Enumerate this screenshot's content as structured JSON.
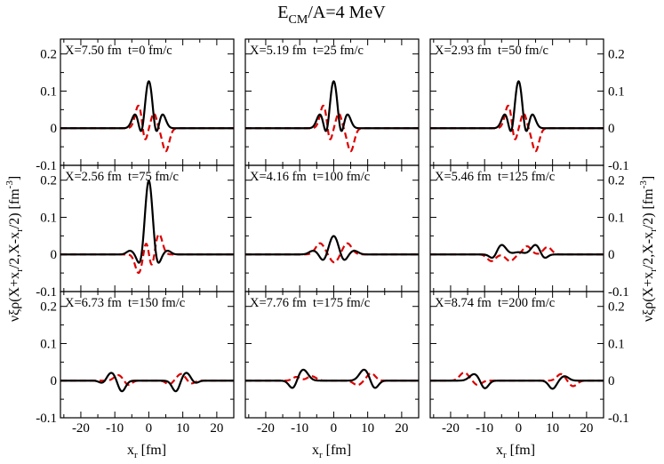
{
  "title_main": "E",
  "title_sub": "CM",
  "title_rest": "/A=4 MeV",
  "ylabel_text": "νξρ(X+x",
  "ylabel_sub1": "r",
  "ylabel_mid": "/2,X-x",
  "ylabel_sub2": "r",
  "ylabel_end": "/2) [fm",
  "ylabel_sup": "-3",
  "ylabel_close": "]",
  "xlabel_main": "x",
  "xlabel_sub": "r",
  "xlabel_unit": " [fm]",
  "colors": {
    "solid": "#000000",
    "dashed": "#dd0000"
  },
  "chart_data": {
    "type": "line",
    "layout": "3x3 grid",
    "xlim": [
      -26,
      25
    ],
    "ylim": [
      -0.1,
      0.24
    ],
    "xticks": [
      -20,
      -10,
      0,
      10,
      20
    ],
    "xtick_labels": [
      "-20",
      "-10",
      "0",
      "10",
      "20"
    ],
    "yticks": [
      -0.1,
      0,
      0.1,
      0.2
    ],
    "ytick_labels": [
      "-0.1",
      "0",
      "0.1",
      "0.2"
    ],
    "series_names": [
      "solid (black)",
      "dashed (red)"
    ],
    "panels": [
      {
        "label": "X=7.50 fm  t=0 fm/c",
        "solid": [
          {
            "c": 0,
            "a": 0.13,
            "w": 1.2
          },
          {
            "c": -4,
            "a": 0.038,
            "w": 1.0
          },
          {
            "c": 4,
            "a": 0.038,
            "w": 1.0
          },
          {
            "c": -2,
            "a": -0.04,
            "w": 0.8
          },
          {
            "c": 2,
            "a": -0.04,
            "w": 0.8
          }
        ],
        "dashed": [
          {
            "c": -3,
            "a": 0.062,
            "w": 1.0
          },
          {
            "c": 5,
            "a": -0.062,
            "w": 1.0
          },
          {
            "c": -1.2,
            "a": -0.04,
            "w": 0.7
          },
          {
            "c": 1.5,
            "a": 0.04,
            "w": 0.8
          }
        ]
      },
      {
        "label": "X=5.19 fm  t=25 fm/c",
        "solid": [
          {
            "c": 0,
            "a": 0.13,
            "w": 1.2
          },
          {
            "c": -4,
            "a": 0.038,
            "w": 1.0
          },
          {
            "c": 4,
            "a": 0.038,
            "w": 1.0
          },
          {
            "c": -2,
            "a": -0.04,
            "w": 0.8
          },
          {
            "c": 2,
            "a": -0.04,
            "w": 0.8
          }
        ],
        "dashed": [
          {
            "c": -3,
            "a": 0.062,
            "w": 1.0
          },
          {
            "c": 5,
            "a": -0.062,
            "w": 1.0
          },
          {
            "c": -1.2,
            "a": -0.04,
            "w": 0.7
          },
          {
            "c": 1.5,
            "a": 0.04,
            "w": 0.8
          }
        ]
      },
      {
        "label": "X=2.93 fm  t=50 fm/c",
        "solid": [
          {
            "c": 0,
            "a": 0.13,
            "w": 1.2
          },
          {
            "c": -4,
            "a": 0.038,
            "w": 1.0
          },
          {
            "c": 4,
            "a": 0.038,
            "w": 1.0
          },
          {
            "c": -2,
            "a": -0.04,
            "w": 0.8
          },
          {
            "c": 2,
            "a": -0.04,
            "w": 0.8
          }
        ],
        "dashed": [
          {
            "c": -3,
            "a": 0.062,
            "w": 1.0
          },
          {
            "c": 5,
            "a": -0.062,
            "w": 1.0
          },
          {
            "c": -1.2,
            "a": -0.04,
            "w": 0.7
          },
          {
            "c": 1.5,
            "a": 0.04,
            "w": 0.8
          }
        ]
      },
      {
        "label": "X=2.56 fm  t=75 fm/c",
        "solid": [
          {
            "c": 0,
            "a": 0.2,
            "w": 1.1
          },
          {
            "c": -2.5,
            "a": -0.032,
            "w": 0.9
          },
          {
            "c": 2.5,
            "a": -0.032,
            "w": 0.9
          },
          {
            "c": -5.5,
            "a": 0.01,
            "w": 1.0
          },
          {
            "c": 5.5,
            "a": 0.01,
            "w": 1.0
          }
        ],
        "dashed": [
          {
            "c": -3,
            "a": -0.05,
            "w": 1.0
          },
          {
            "c": 3,
            "a": 0.055,
            "w": 1.0
          },
          {
            "c": -0.8,
            "a": 0.035,
            "w": 0.7
          },
          {
            "c": 0.9,
            "a": -0.035,
            "w": 0.7
          }
        ]
      },
      {
        "label": "X=4.16 fm  t=100 fm/c",
        "solid": [
          {
            "c": 0,
            "a": 0.05,
            "w": 1.3
          },
          {
            "c": -3,
            "a": -0.018,
            "w": 1.0
          },
          {
            "c": 3,
            "a": -0.018,
            "w": 1.0
          },
          {
            "c": -6,
            "a": 0.01,
            "w": 1.2
          },
          {
            "c": 6,
            "a": 0.01,
            "w": 1.2
          }
        ],
        "dashed": [
          {
            "c": -4,
            "a": 0.03,
            "w": 1.3
          },
          {
            "c": 0.2,
            "a": -0.022,
            "w": 1.2
          },
          {
            "c": 4,
            "a": 0.03,
            "w": 1.3
          }
        ]
      },
      {
        "label": "X=5.46 fm  t=125 fm/c",
        "solid": [
          {
            "c": -5,
            "a": 0.026,
            "w": 1.3
          },
          {
            "c": 5,
            "a": 0.026,
            "w": 1.3
          },
          {
            "c": -7.5,
            "a": -0.012,
            "w": 1.0
          },
          {
            "c": 7.5,
            "a": -0.012,
            "w": 1.0
          },
          {
            "c": 0,
            "a": 0.006,
            "w": 1.5
          }
        ],
        "dashed": [
          {
            "c": -8,
            "a": -0.018,
            "w": 1.2
          },
          {
            "c": -2.5,
            "a": -0.018,
            "w": 1.2
          },
          {
            "c": 2.5,
            "a": 0.022,
            "w": 1.2
          },
          {
            "c": 8.5,
            "a": 0.02,
            "w": 1.2
          }
        ]
      },
      {
        "label": "X=6.73 fm  t=150 fm/c",
        "solid": [
          {
            "c": -11,
            "a": 0.022,
            "w": 1.3
          },
          {
            "c": -8,
            "a": -0.03,
            "w": 1.1
          },
          {
            "c": -13.5,
            "a": -0.008,
            "w": 1.0
          },
          {
            "c": 8,
            "a": -0.03,
            "w": 1.1
          },
          {
            "c": 11,
            "a": 0.022,
            "w": 1.3
          },
          {
            "c": 13.5,
            "a": -0.008,
            "w": 1.0
          }
        ],
        "dashed": [
          {
            "c": -9,
            "a": 0.015,
            "w": 1.2
          },
          {
            "c": -6,
            "a": -0.012,
            "w": 1.0
          },
          {
            "c": 6,
            "a": -0.01,
            "w": 1.0
          },
          {
            "c": 9.5,
            "a": 0.018,
            "w": 1.2
          },
          {
            "c": 12.5,
            "a": -0.008,
            "w": 1.0
          }
        ]
      },
      {
        "label": "X=7.76 fm  t=175 fm/c",
        "solid": [
          {
            "c": -9,
            "a": 0.03,
            "w": 1.4
          },
          {
            "c": -12,
            "a": -0.022,
            "w": 1.1
          },
          {
            "c": 9,
            "a": 0.03,
            "w": 1.4
          },
          {
            "c": 12,
            "a": -0.022,
            "w": 1.1
          }
        ],
        "dashed": [
          {
            "c": -6.5,
            "a": 0.012,
            "w": 1.3
          },
          {
            "c": -11,
            "a": 0.01,
            "w": 1.1
          },
          {
            "c": 7,
            "a": -0.012,
            "w": 1.2
          },
          {
            "c": 11,
            "a": 0.02,
            "w": 1.2
          }
        ]
      },
      {
        "label": "X=8.74 fm  t=200 fm/c",
        "solid": [
          {
            "c": -13,
            "a": 0.018,
            "w": 1.4
          },
          {
            "c": -10,
            "a": -0.022,
            "w": 1.1
          },
          {
            "c": 10,
            "a": -0.022,
            "w": 1.1
          },
          {
            "c": 13.5,
            "a": 0.012,
            "w": 1.2
          }
        ],
        "dashed": [
          {
            "c": -16,
            "a": 0.022,
            "w": 1.3
          },
          {
            "c": -12,
            "a": -0.012,
            "w": 1.1
          },
          {
            "c": 12.5,
            "a": 0.018,
            "w": 1.2
          },
          {
            "c": 16,
            "a": -0.015,
            "w": 1.2
          }
        ]
      }
    ]
  }
}
